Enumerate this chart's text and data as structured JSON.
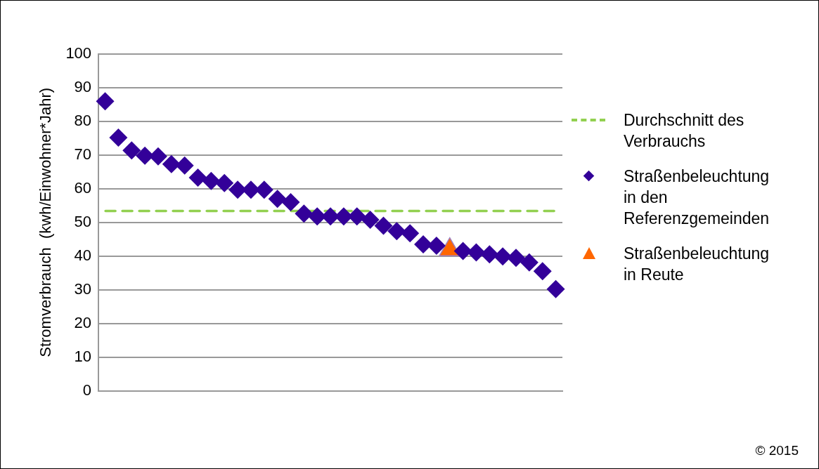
{
  "chart_data": {
    "type": "scatter",
    "ylabel": "Stromverbrauch  (kwh/Einwohner*Jahr)",
    "categories": [
      null,
      null,
      null,
      null,
      null,
      null,
      null,
      null,
      null,
      null,
      null,
      null,
      null,
      null,
      null,
      null,
      null,
      null,
      null,
      null,
      null,
      null,
      null,
      null,
      null,
      null,
      null,
      null,
      null,
      null,
      null,
      null,
      null,
      null,
      null
    ],
    "series": [
      {
        "name": "Straßenbeleuchtung in den Referenzgemeinden",
        "color": "#330099",
        "marker": "diamond",
        "values": [
          86,
          75.2,
          71.4,
          69.8,
          69.6,
          67.3,
          66.9,
          63.3,
          62.3,
          61.7,
          59.7,
          59.7,
          59.7,
          57,
          56,
          52.6,
          51.8,
          51.8,
          51.8,
          51.8,
          50.8,
          49,
          47.4,
          46.8,
          43.5,
          43.1,
          null,
          41.5,
          41.1,
          40.5,
          39.9,
          39.5,
          38.1,
          35.5,
          30.2
        ]
      },
      {
        "name": "Straßenbeleuchtung in Reute",
        "color": "#ff6600",
        "marker": "triangle",
        "values": [
          null,
          null,
          null,
          null,
          null,
          null,
          null,
          null,
          null,
          null,
          null,
          null,
          null,
          null,
          null,
          null,
          null,
          null,
          null,
          null,
          null,
          null,
          null,
          null,
          null,
          null,
          41.9,
          null,
          null,
          null,
          null,
          null,
          null,
          null,
          null
        ]
      }
    ],
    "ref_lines": [
      {
        "axis": "y",
        "value": 53.4,
        "label": "Durchschnitt des Verbrauchs",
        "color": "#92d050",
        "line_style": "dashed"
      }
    ],
    "ylim": [
      0,
      100
    ],
    "yticks": [
      0,
      10,
      20,
      30,
      40,
      50,
      60,
      70,
      80,
      90,
      100
    ],
    "grid": "y",
    "legend": "right",
    "annotations": [
      "© 2015"
    ]
  }
}
